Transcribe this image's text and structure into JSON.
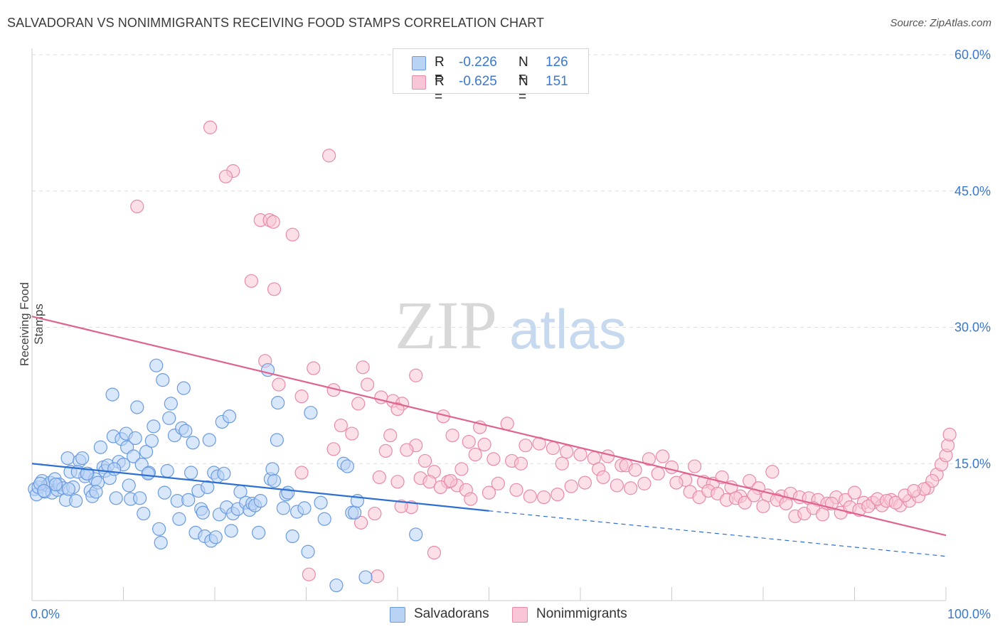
{
  "title": "SALVADORAN VS NONIMMIGRANTS RECEIVING FOOD STAMPS CORRELATION CHART",
  "source": "Source: ZipAtlas.com",
  "watermark": {
    "zip": "ZIP",
    "atlas": "atlas"
  },
  "legend": {
    "rows": [
      {
        "r_label": "R =",
        "r_value": "-0.226",
        "n_label": "N =",
        "n_value": "126",
        "fill": "#b9d3f5",
        "stroke": "#6a9be0"
      },
      {
        "r_label": "R =",
        "r_value": "-0.625",
        "n_label": "N =",
        "n_value": "151",
        "fill": "#f8c6d6",
        "stroke": "#e98aa8"
      }
    ]
  },
  "bottom_legend": [
    "Salvadorans",
    "Nonimmigrants"
  ],
  "colors": {
    "blue_fill": "#b9d3f5",
    "blue_stroke": "#6a9be0",
    "blue_line": "#2e6fd2",
    "pink_fill": "#f8c6d6",
    "pink_stroke": "#e98aa8",
    "pink_line": "#e0638f",
    "value_text": "#3a78d0",
    "grid": "#dedede"
  },
  "chart_data": {
    "type": "scatter",
    "title": "SALVADORAN VS NONIMMIGRANTS RECEIVING FOOD STAMPS CORRELATION CHART",
    "xlabel": "",
    "ylabel": "Receiving Food Stamps",
    "xlim": [
      0,
      100
    ],
    "ylim": [
      0,
      60
    ],
    "x_tick_labels": [
      "0.0%",
      "100.0%"
    ],
    "y_ticks": [
      15,
      30,
      45,
      60
    ],
    "y_tick_labels": [
      "15.0%",
      "30.0%",
      "45.0%",
      "60.0%"
    ],
    "grid": true,
    "legend_position": "top-center",
    "series": [
      {
        "name": "Salvadorans",
        "r": -0.226,
        "n": 126,
        "trend": {
          "x": [
            0,
            50
          ],
          "y": [
            15.0,
            9.8
          ],
          "dashed_to": [
            100,
            4.8
          ]
        },
        "points": [
          [
            0.3,
            12.2
          ],
          [
            0.5,
            11.6
          ],
          [
            0.7,
            12.4
          ],
          [
            1.1,
            13.1
          ],
          [
            1.4,
            11.9
          ],
          [
            1.7,
            12.6
          ],
          [
            2.0,
            12.9
          ],
          [
            2.2,
            11.8
          ],
          [
            2.5,
            13.3
          ],
          [
            2.8,
            12.1
          ],
          [
            3.0,
            12.7
          ],
          [
            3.4,
            12.3
          ],
          [
            3.7,
            11.0
          ],
          [
            3.9,
            15.6
          ],
          [
            4.2,
            14.1
          ],
          [
            4.5,
            12.4
          ],
          [
            4.8,
            10.9
          ],
          [
            5.2,
            15.3
          ],
          [
            5.5,
            15.6
          ],
          [
            5.8,
            13.6
          ],
          [
            6.1,
            13.9
          ],
          [
            6.4,
            12.0
          ],
          [
            6.6,
            11.4
          ],
          [
            6.9,
            13.3
          ],
          [
            7.2,
            12.9
          ],
          [
            7.5,
            16.8
          ],
          [
            7.8,
            14.6
          ],
          [
            8.0,
            14.2
          ],
          [
            8.3,
            14.8
          ],
          [
            8.5,
            13.4
          ],
          [
            8.8,
            22.6
          ],
          [
            8.9,
            18.0
          ],
          [
            9.2,
            11.2
          ],
          [
            9.5,
            15.2
          ],
          [
            9.8,
            17.7
          ],
          [
            10.0,
            14.9
          ],
          [
            10.3,
            18.3
          ],
          [
            10.4,
            16.8
          ],
          [
            10.6,
            12.6
          ],
          [
            10.8,
            11.1
          ],
          [
            11.1,
            15.8
          ],
          [
            11.3,
            17.8
          ],
          [
            11.5,
            21.2
          ],
          [
            11.8,
            11.2
          ],
          [
            12.0,
            14.9
          ],
          [
            12.2,
            9.5
          ],
          [
            12.5,
            16.3
          ],
          [
            12.8,
            14.0
          ],
          [
            13.1,
            17.5
          ],
          [
            13.3,
            19.1
          ],
          [
            13.6,
            25.8
          ],
          [
            13.9,
            7.8
          ],
          [
            14.1,
            6.3
          ],
          [
            14.3,
            24.2
          ],
          [
            14.5,
            11.8
          ],
          [
            14.8,
            14.2
          ],
          [
            15.0,
            20.0
          ],
          [
            15.2,
            21.6
          ],
          [
            15.6,
            18.1
          ],
          [
            15.9,
            10.9
          ],
          [
            16.1,
            8.9
          ],
          [
            16.4,
            18.9
          ],
          [
            16.6,
            23.3
          ],
          [
            16.8,
            18.6
          ],
          [
            17.1,
            11.0
          ],
          [
            17.4,
            14.0
          ],
          [
            17.6,
            17.3
          ],
          [
            17.9,
            7.4
          ],
          [
            18.2,
            12.0
          ],
          [
            18.5,
            10.0
          ],
          [
            18.7,
            9.6
          ],
          [
            18.9,
            7.0
          ],
          [
            19.2,
            12.4
          ],
          [
            19.4,
            17.6
          ],
          [
            19.6,
            6.5
          ],
          [
            19.9,
            14.0
          ],
          [
            20.1,
            6.9
          ],
          [
            20.3,
            13.6
          ],
          [
            20.5,
            9.4
          ],
          [
            20.8,
            19.6
          ],
          [
            21.0,
            13.9
          ],
          [
            21.3,
            10.2
          ],
          [
            21.6,
            20.2
          ],
          [
            21.8,
            7.6
          ],
          [
            22.0,
            9.5
          ],
          [
            22.5,
            10.0
          ],
          [
            22.8,
            11.9
          ],
          [
            23.4,
            10.7
          ],
          [
            23.8,
            9.9
          ],
          [
            24.1,
            10.6
          ],
          [
            24.4,
            10.4
          ],
          [
            24.8,
            7.4
          ],
          [
            25.0,
            10.9
          ],
          [
            25.8,
            25.3
          ],
          [
            26.1,
            13.3
          ],
          [
            26.3,
            14.4
          ],
          [
            26.5,
            13.1
          ],
          [
            26.8,
            17.6
          ],
          [
            26.9,
            21.7
          ],
          [
            27.5,
            10.1
          ],
          [
            27.8,
            11.6
          ],
          [
            28.0,
            11.8
          ],
          [
            28.5,
            7.0
          ],
          [
            29.0,
            9.7
          ],
          [
            29.8,
            10.1
          ],
          [
            30.2,
            5.3
          ],
          [
            30.5,
            20.6
          ],
          [
            31.6,
            10.7
          ],
          [
            32.0,
            8.9
          ],
          [
            33.3,
            1.6
          ],
          [
            34.1,
            15.0
          ],
          [
            34.5,
            14.7
          ],
          [
            35.0,
            9.6
          ],
          [
            35.3,
            9.6
          ],
          [
            35.6,
            10.9
          ],
          [
            36.5,
            2.5
          ],
          [
            42.0,
            7.2
          ],
          [
            0.9,
            12.8
          ],
          [
            1.3,
            12.0
          ],
          [
            2.6,
            12.7
          ],
          [
            4.0,
            12.2
          ],
          [
            5.0,
            14.1
          ],
          [
            6.0,
            13.9
          ],
          [
            7.0,
            11.9
          ],
          [
            9.0,
            14.4
          ],
          [
            12.7,
            13.9
          ]
        ]
      },
      {
        "name": "Nonimmigrants",
        "r": -0.625,
        "n": 151,
        "trend": {
          "x": [
            0,
            100
          ],
          "y": [
            31.2,
            7.1
          ]
        },
        "points": [
          [
            19.5,
            52.0
          ],
          [
            32.5,
            48.9
          ],
          [
            22.0,
            47.2
          ],
          [
            21.2,
            46.6
          ],
          [
            11.5,
            43.3
          ],
          [
            25.0,
            41.8
          ],
          [
            26.0,
            41.8
          ],
          [
            26.4,
            41.6
          ],
          [
            28.5,
            40.2
          ],
          [
            24.0,
            35.1
          ],
          [
            26.5,
            34.2
          ],
          [
            25.5,
            26.3
          ],
          [
            30.8,
            25.5
          ],
          [
            36.2,
            25.6
          ],
          [
            42.0,
            24.7
          ],
          [
            27.0,
            23.7
          ],
          [
            36.7,
            23.7
          ],
          [
            33.0,
            23.1
          ],
          [
            29.5,
            22.4
          ],
          [
            38.2,
            22.3
          ],
          [
            39.5,
            21.9
          ],
          [
            40.5,
            21.6
          ],
          [
            35.7,
            21.6
          ],
          [
            40.0,
            21.0
          ],
          [
            45.0,
            20.2
          ],
          [
            33.8,
            19.2
          ],
          [
            35.0,
            18.3
          ],
          [
            49.0,
            19.0
          ],
          [
            52.0,
            19.4
          ],
          [
            46.0,
            18.1
          ],
          [
            39.2,
            18.1
          ],
          [
            47.8,
            17.4
          ],
          [
            49.5,
            17.1
          ],
          [
            54.0,
            17.0
          ],
          [
            55.5,
            17.2
          ],
          [
            57.0,
            16.7
          ],
          [
            58.5,
            16.3
          ],
          [
            42.0,
            17.0
          ],
          [
            41.0,
            16.5
          ],
          [
            33.0,
            16.6
          ],
          [
            48.5,
            16.0
          ],
          [
            50.5,
            15.5
          ],
          [
            52.5,
            15.3
          ],
          [
            53.5,
            15.0
          ],
          [
            58.0,
            15.0
          ],
          [
            60.0,
            16.0
          ],
          [
            61.5,
            15.6
          ],
          [
            62.0,
            14.4
          ],
          [
            63.0,
            15.8
          ],
          [
            64.5,
            14.8
          ],
          [
            65.0,
            14.8
          ],
          [
            66.0,
            14.3
          ],
          [
            67.5,
            15.5
          ],
          [
            69.0,
            15.8
          ],
          [
            70.0,
            14.6
          ],
          [
            71.5,
            13.2
          ],
          [
            72.5,
            14.7
          ],
          [
            73.5,
            13.0
          ],
          [
            74.5,
            12.8
          ],
          [
            75.5,
            13.5
          ],
          [
            76.5,
            12.4
          ],
          [
            77.5,
            11.4
          ],
          [
            78.5,
            13.1
          ],
          [
            79.5,
            12.3
          ],
          [
            80.5,
            11.5
          ],
          [
            81.0,
            14.1
          ],
          [
            82.0,
            11.4
          ],
          [
            83.0,
            11.7
          ],
          [
            84.0,
            11.3
          ],
          [
            85.0,
            11.2
          ],
          [
            86.0,
            11.0
          ],
          [
            87.0,
            10.6
          ],
          [
            88.0,
            11.3
          ],
          [
            89.0,
            11.0
          ],
          [
            90.0,
            11.8
          ],
          [
            91.0,
            10.7
          ],
          [
            92.0,
            10.7
          ],
          [
            93.0,
            10.4
          ],
          [
            94.0,
            11.0
          ],
          [
            95.0,
            10.4
          ],
          [
            96.0,
            10.9
          ],
          [
            97.0,
            11.4
          ],
          [
            98.0,
            12.3
          ],
          [
            99.0,
            13.8
          ],
          [
            99.5,
            14.9
          ],
          [
            100.0,
            15.9
          ],
          [
            100.2,
            17.0
          ],
          [
            100.4,
            18.2
          ],
          [
            98.5,
            13.1
          ],
          [
            97.6,
            12.2
          ],
          [
            43.0,
            15.3
          ],
          [
            44.0,
            14.1
          ],
          [
            45.5,
            13.0
          ],
          [
            46.5,
            12.6
          ],
          [
            47.5,
            12.1
          ],
          [
            48.0,
            11.1
          ],
          [
            50.0,
            11.8
          ],
          [
            51.0,
            12.8
          ],
          [
            53.0,
            12.1
          ],
          [
            54.5,
            11.4
          ],
          [
            56.0,
            11.3
          ],
          [
            57.5,
            11.6
          ],
          [
            59.0,
            12.5
          ],
          [
            60.5,
            12.9
          ],
          [
            62.5,
            13.5
          ],
          [
            64.0,
            12.6
          ],
          [
            65.5,
            12.3
          ],
          [
            67.0,
            12.8
          ],
          [
            68.5,
            13.9
          ],
          [
            70.5,
            12.9
          ],
          [
            72.0,
            11.9
          ],
          [
            73.0,
            11.3
          ],
          [
            74.0,
            12.0
          ],
          [
            75.0,
            11.7
          ],
          [
            76.0,
            11.0
          ],
          [
            77.0,
            11.2
          ],
          [
            78.0,
            10.7
          ],
          [
            79.0,
            11.5
          ],
          [
            80.0,
            10.3
          ],
          [
            81.5,
            11.0
          ],
          [
            82.5,
            10.6
          ],
          [
            83.5,
            9.2
          ],
          [
            84.5,
            9.5
          ],
          [
            85.5,
            10.1
          ],
          [
            86.5,
            9.4
          ],
          [
            87.5,
            10.6
          ],
          [
            88.5,
            9.6
          ],
          [
            89.5,
            10.2
          ],
          [
            90.5,
            9.9
          ],
          [
            91.5,
            10.3
          ],
          [
            92.5,
            11.1
          ],
          [
            93.5,
            10.9
          ],
          [
            94.5,
            10.7
          ],
          [
            95.5,
            11.5
          ],
          [
            96.5,
            12.0
          ],
          [
            37.5,
            9.5
          ],
          [
            38.0,
            13.5
          ],
          [
            40.0,
            13.0
          ],
          [
            42.5,
            13.4
          ],
          [
            43.5,
            13.0
          ],
          [
            44.0,
            5.2
          ],
          [
            41.5,
            10.2
          ],
          [
            29.5,
            14.0
          ],
          [
            30.3,
            2.8
          ],
          [
            37.8,
            2.6
          ],
          [
            36.0,
            8.5
          ],
          [
            38.7,
            16.4
          ],
          [
            40.4,
            10.3
          ],
          [
            44.7,
            12.4
          ],
          [
            45.8,
            13.1
          ],
          [
            47.0,
            14.4
          ]
        ]
      }
    ]
  }
}
